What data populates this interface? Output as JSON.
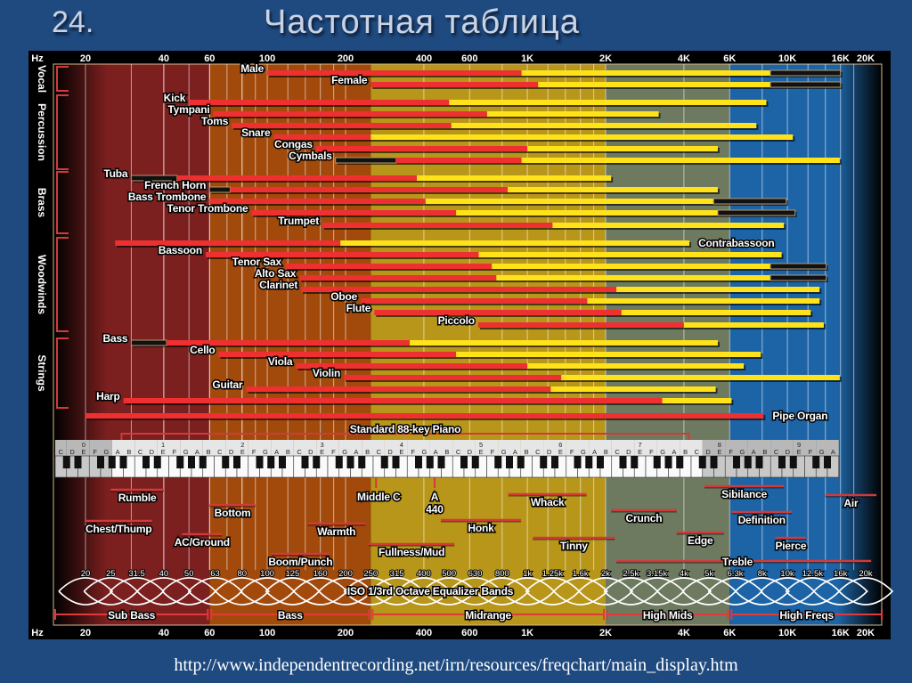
{
  "slide": {
    "number": "24.",
    "title": "Частотная таблица",
    "source_url": "http://www.independentrecording.net/irn/resources/freqchart/main_display.htm"
  },
  "chart_data": {
    "type": "range-bar",
    "x_scale": "log",
    "xlim": [
      20,
      20000
    ],
    "x_unit": "Hz",
    "grid": true,
    "axis_ticks": [
      {
        "label": "Hz"
      },
      {
        "label": "20",
        "f": 20
      },
      {
        "label": "40",
        "f": 40
      },
      {
        "label": "60",
        "f": 60
      },
      {
        "label": "100",
        "f": 100
      },
      {
        "label": "200",
        "f": 200
      },
      {
        "label": "400",
        "f": 400
      },
      {
        "label": "600",
        "f": 600
      },
      {
        "label": "1K",
        "f": 1000
      },
      {
        "label": "2K",
        "f": 2000
      },
      {
        "label": "4K",
        "f": 4000
      },
      {
        "label": "6K",
        "f": 6000
      },
      {
        "label": "10K",
        "f": 10000
      },
      {
        "label": "16K",
        "f": 16000
      },
      {
        "label": "20K",
        "f": 20000
      }
    ],
    "colors": {
      "fundamental": "#ee3030",
      "harmonics": "#ffe21a",
      "extended": "#111111",
      "region_sub_bass": "#7b1f1f",
      "region_bass": "#a24a0c",
      "region_midrange": "#b8961a",
      "region_high_mids": "#6e7a60",
      "region_high_freqs": "#1d64a6"
    },
    "groups": [
      {
        "name": "Vocal",
        "instruments": [
          {
            "name": "Male",
            "low": 100,
            "fundamental_high": 950,
            "harmonic_high": 8600,
            "extended_high": 16000
          },
          {
            "name": "Female",
            "low": 250,
            "fundamental_high": 1100,
            "harmonic_high": 8600,
            "extended_high": 16000
          }
        ]
      },
      {
        "name": "Percussion",
        "instruments": [
          {
            "name": "Kick",
            "low": 50,
            "fundamental_high": 500,
            "harmonic_high": 8300
          },
          {
            "name": "Tympani",
            "low": 62,
            "fundamental_high": 700,
            "harmonic_high": 3200
          },
          {
            "name": "Toms",
            "low": 73,
            "fundamental_high": 510,
            "harmonic_high": 7600
          },
          {
            "name": "Snare",
            "low": 106,
            "fundamental_high": 250,
            "harmonic_high": 10500
          },
          {
            "name": "Congas",
            "low": 154,
            "fundamental_high": 1000,
            "harmonic_high": 5400
          },
          {
            "name": "Cymbals",
            "extended_low": 183,
            "low": 313,
            "fundamental_high": 950,
            "harmonic_high": 15900
          }
        ]
      },
      {
        "name": "Brass",
        "instruments": [
          {
            "name": "Tuba",
            "extended_low": 30,
            "low": 45,
            "fundamental_high": 376,
            "harmonic_high": 2100
          },
          {
            "name": "French Horn",
            "extended_low": 60,
            "low": 72,
            "fundamental_high": 840,
            "harmonic_high": 5400
          },
          {
            "name": "Bass Trombone",
            "low": 60,
            "fundamental_high": 406,
            "harmonic_high": 5200,
            "extended_high": 9900
          },
          {
            "name": "Tenor Trombone",
            "low": 87,
            "fundamental_high": 532,
            "harmonic_high": 5400,
            "extended_high": 10700
          },
          {
            "name": "Trumpet",
            "low": 163,
            "fundamental_high": 1250,
            "harmonic_high": 9700
          }
        ]
      },
      {
        "name": "Woodwinds",
        "instruments": [
          {
            "name": "Contrabassoon",
            "low": 26,
            "fundamental_high": 191,
            "harmonic_high": 4200
          },
          {
            "name": "Bassoon",
            "low": 58,
            "fundamental_high": 650,
            "harmonic_high": 9500
          },
          {
            "name": "Tenor Sax",
            "low": 117,
            "fundamental_high": 730,
            "harmonic_high": 8600,
            "extended_high": 14100
          },
          {
            "name": "Alto Sax",
            "low": 133,
            "fundamental_high": 760,
            "harmonic_high": 8600,
            "extended_high": 14100
          },
          {
            "name": "Clarinet",
            "low": 135,
            "fundamental_high": 2200,
            "harmonic_high": 13300
          },
          {
            "name": "Oboe",
            "low": 229,
            "fundamental_high": 1700,
            "harmonic_high": 13300
          },
          {
            "name": "Flute",
            "low": 258,
            "fundamental_high": 2300,
            "harmonic_high": 12300
          },
          {
            "name": "Piccolo",
            "low": 647,
            "fundamental_high": 4000,
            "harmonic_high": 13800
          }
        ]
      },
      {
        "name": "Strings",
        "instruments": [
          {
            "name": "Bass",
            "extended_low": 30,
            "low": 41,
            "fundamental_high": 353,
            "harmonic_high": 5400
          },
          {
            "name": "Cello",
            "low": 65,
            "fundamental_high": 532,
            "harmonic_high": 7900
          },
          {
            "name": "Viola",
            "low": 129,
            "fundamental_high": 1000,
            "harmonic_high": 6800
          },
          {
            "name": "Violin",
            "low": 197,
            "fundamental_high": 1350,
            "harmonic_high": 15900
          },
          {
            "name": "Guitar",
            "low": 83,
            "fundamental_high": 1230,
            "harmonic_high": 5300
          },
          {
            "name": "Harp",
            "low": 28,
            "fundamental_high": 3300,
            "harmonic_high": 6100
          }
        ]
      },
      {
        "name": "",
        "instruments": [
          {
            "name": "Pipe Organ",
            "low": 20,
            "fundamental_high": 8100
          }
        ]
      }
    ],
    "piano": {
      "title": "Standard 88-key Piano",
      "low": 27.5,
      "high": 4186,
      "octaves": [
        "0",
        "1",
        "2",
        "3",
        "4",
        "5",
        "6",
        "7",
        "8",
        "9"
      ],
      "notes": [
        "C",
        "D",
        "E",
        "F",
        "G",
        "A",
        "B"
      ]
    },
    "markers": [
      {
        "label": "Middle C",
        "f": 262
      },
      {
        "label": "A",
        "sub": "440",
        "f": 440
      }
    ],
    "descriptors": [
      {
        "label": "Rumble",
        "low": 25,
        "high": 40
      },
      {
        "label": "Chest/Thump",
        "low": 20,
        "high": 36
      },
      {
        "label": "Bottom",
        "low": 60,
        "high": 90
      },
      {
        "label": "AC/Ground",
        "low": 47,
        "high": 67
      },
      {
        "label": "Boom/Punch",
        "low": 104,
        "high": 173
      },
      {
        "label": "Warmth",
        "low": 143,
        "high": 238
      },
      {
        "label": "Fullness/Mud",
        "low": 246,
        "high": 524
      },
      {
        "label": "Honk",
        "low": 465,
        "high": 946
      },
      {
        "label": "Whack",
        "low": 845,
        "high": 1690
      },
      {
        "label": "Tinny",
        "low": 1050,
        "high": 2170
      },
      {
        "label": "Crunch",
        "low": 2100,
        "high": 3750
      },
      {
        "label": "Sibilance",
        "low": 4800,
        "high": 9700
      },
      {
        "label": "Definition",
        "low": 6100,
        "high": 10400
      },
      {
        "label": "Edge",
        "low": 3750,
        "high": 5700
      },
      {
        "label": "Pierce",
        "low": 9000,
        "high": 11800
      },
      {
        "label": "Air",
        "low": 14000,
        "high": 22000
      },
      {
        "label": "Treble",
        "low": 2200,
        "high": 21000
      }
    ],
    "eq": {
      "title": "ISO 1/3rd Octave Equalizer Bands",
      "bands": [
        {
          "label": "20",
          "f": 20
        },
        {
          "label": "25",
          "f": 25
        },
        {
          "label": "31.5",
          "f": 31.5
        },
        {
          "label": "40",
          "f": 40
        },
        {
          "label": "50",
          "f": 50
        },
        {
          "label": "63",
          "f": 63
        },
        {
          "label": "80",
          "f": 80
        },
        {
          "label": "100",
          "f": 100
        },
        {
          "label": "125",
          "f": 125
        },
        {
          "label": "160",
          "f": 160
        },
        {
          "label": "200",
          "f": 200
        },
        {
          "label": "250",
          "f": 250
        },
        {
          "label": "315",
          "f": 315
        },
        {
          "label": "400",
          "f": 400
        },
        {
          "label": "500",
          "f": 500
        },
        {
          "label": "630",
          "f": 630
        },
        {
          "label": "800",
          "f": 800
        },
        {
          "label": "1k",
          "f": 1000
        },
        {
          "label": "1.25k",
          "f": 1250
        },
        {
          "label": "1.6k",
          "f": 1600
        },
        {
          "label": "2k",
          "f": 2000
        },
        {
          "label": "2.5k",
          "f": 2500
        },
        {
          "label": "3.15k",
          "f": 3150
        },
        {
          "label": "4k",
          "f": 4000
        },
        {
          "label": "5k",
          "f": 5000
        },
        {
          "label": "6.3k",
          "f": 6300
        },
        {
          "label": "8k",
          "f": 8000
        },
        {
          "label": "10k",
          "f": 10000
        },
        {
          "label": "12.5k",
          "f": 12500
        },
        {
          "label": "16k",
          "f": 16000
        },
        {
          "label": "20k",
          "f": 20000
        }
      ]
    },
    "ranges": [
      {
        "label": "Sub Bass",
        "low": 20,
        "high": 60
      },
      {
        "label": "Bass",
        "low": 60,
        "high": 250
      },
      {
        "label": "Midrange",
        "low": 250,
        "high": 2000
      },
      {
        "label": "High Mids",
        "low": 2000,
        "high": 6000
      },
      {
        "label": "High Freqs",
        "low": 6000,
        "high": 20000
      }
    ]
  }
}
